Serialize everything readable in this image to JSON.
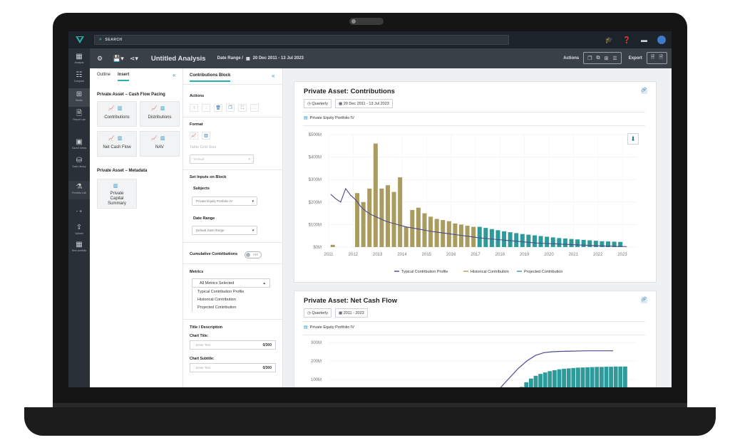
{
  "topbar": {
    "search_label": "SEARCH",
    "icons": [
      "graduation-cap-icon",
      "help-notification-icon",
      "window-icon",
      "user-avatar-icon"
    ]
  },
  "toolbar": {
    "title": "Untitled Analysis",
    "date_range_label": "Date Range /",
    "date_range_value": "20 Dec 2011 - 13 Jul 2023",
    "actions_label": "Actions",
    "export_label": "Export"
  },
  "rail": {
    "items": [
      {
        "label": "Analysis",
        "icon": "calculator-icon"
      },
      {
        "label": "Compare",
        "icon": "compare-icon"
      },
      {
        "label": "Studio",
        "icon": "studio-icon",
        "active": true
      },
      {
        "label": "Report Lab",
        "icon": "report-icon"
      },
      {
        "label": "Saved Views",
        "icon": "saved-views-icon"
      },
      {
        "label": "Data Library",
        "icon": "database-icon"
      },
      {
        "label": "Portfolio Lab",
        "icon": "flask-icon"
      },
      {
        "label": "Upload",
        "icon": "upload-icon"
      },
      {
        "label": "New portfolio",
        "icon": "grid-icon"
      }
    ]
  },
  "insert_panel": {
    "tabs": [
      "Outline",
      "Insert"
    ],
    "section1_title": "Private Asset – Cash Flow Pacing",
    "cards1": [
      "Contributions",
      "Distributions",
      "Net Cash Flow",
      "NAV"
    ],
    "section2_title": "Private Asset – Metadata",
    "cards2": [
      "Private Capital Summary"
    ]
  },
  "block_panel": {
    "title": "Contributions Block",
    "actions_label": "Actions",
    "format_label": "Format",
    "table_grid_size_label": "Table Grid Size",
    "table_grid_size_value": "Default",
    "set_inputs_label": "Set Inputs on Block",
    "subjects_label": "Subjects",
    "subjects_value": "Private Equity Portfolio IV",
    "date_range_label": "Date Range",
    "date_range_value": "Default Date Range",
    "cumulative_label": "Cumulative Contributions",
    "toggle_text": "OFF",
    "metrics_label": "Metrics",
    "metrics_selected": "All Metrics Selected",
    "metrics_list": [
      "Typical Contribution Profile",
      "Historical Contribution",
      "Projected Contribution"
    ],
    "title_desc_label": "Title / Description",
    "chart_title_label": "Chart Title:",
    "chart_title_placeholder": "Enter Text",
    "chart_title_count": "0/300",
    "chart_subtitle_label": "Chart Subtitle:",
    "chart_subtitle_placeholder": "Enter Text",
    "chart_subtitle_count": "0/300"
  },
  "card1": {
    "title": "Private Asset: Contributions",
    "frequency": "Quarterly",
    "date_range": "20 Dec 2011 - 13 Jul 2023",
    "portfolio": "Private Equity Portfolio IV"
  },
  "card2": {
    "title": "Private Asset: Net Cash Flow",
    "frequency": "Quarterly",
    "date_range": "2011 - 2023",
    "portfolio": "Private Equity Portfolio IV"
  },
  "chart_data": [
    {
      "type": "bar",
      "title": "Private Asset: Contributions",
      "x_ticks": [
        "2011",
        "2012",
        "2013",
        "2014",
        "2015",
        "2016",
        "2017",
        "2018",
        "2019",
        "2020",
        "2021",
        "2022",
        "2023"
      ],
      "y_ticks": [
        "$0M",
        "$100M",
        "$200M",
        "$300M",
        "$400M",
        "$500M"
      ],
      "ylim": [
        0,
        500
      ],
      "legend": [
        "Typical Contribution Profile",
        "Historical Contribution",
        "Projected Contribution"
      ],
      "legend_position": "bottom",
      "colors": {
        "historical": "#a99c5e",
        "projected": "#2e9a9a",
        "typical": "#4b4a8a"
      },
      "series": [
        {
          "name": "Historical Contribution",
          "values": [
            10,
            0,
            0,
            0,
            240,
            200,
            260,
            460,
            260,
            275,
            245,
            310,
            90,
            165,
            175,
            150,
            135,
            125,
            120,
            115,
            105,
            100,
            95,
            90
          ]
        },
        {
          "name": "Projected Contribution",
          "values": [
            90,
            85,
            80,
            75,
            70,
            66,
            62,
            58,
            55,
            52,
            49,
            46,
            43,
            40,
            38,
            36,
            34,
            32,
            30,
            28,
            26,
            25,
            24,
            23,
            22,
            21,
            20,
            19,
            18,
            17,
            16,
            15,
            14,
            13,
            12,
            11,
            10,
            9,
            8,
            8,
            7,
            7,
            6,
            6,
            5,
            5,
            4,
            4
          ]
        },
        {
          "name": "Typical Contribution Profile",
          "values": [
            235,
            215,
            200,
            260,
            230,
            210,
            180,
            160,
            145,
            135,
            125,
            115,
            108,
            102,
            96,
            90,
            86,
            82,
            78,
            74,
            70,
            67,
            64,
            61,
            58,
            55,
            52,
            49,
            46,
            43,
            40,
            38,
            36,
            34,
            32,
            30,
            28,
            26,
            24,
            22,
            20,
            18,
            17,
            16,
            15,
            14,
            13,
            12,
            11,
            10,
            9,
            8,
            7,
            6,
            5,
            4,
            4,
            3,
            3,
            2,
            2,
            2,
            1,
            1,
            1,
            1,
            0,
            0,
            0,
            0,
            0,
            0
          ]
        }
      ]
    },
    {
      "type": "bar",
      "title": "Private Asset: Net Cash Flow",
      "y_ticks": [
        "300M",
        "200M",
        "100M"
      ],
      "ylim": [
        0,
        300
      ],
      "series": [
        {
          "name": "Projected Contribution",
          "values": [
            5,
            15,
            35,
            60,
            85,
            105,
            120,
            130,
            138,
            145,
            150,
            155,
            158,
            160,
            162,
            164,
            165,
            166,
            167,
            168,
            168,
            169,
            169,
            170,
            170,
            170,
            170,
            170
          ]
        },
        {
          "name": "Typical Contribution Profile",
          "values": [
            10,
            60,
            110,
            160,
            200,
            230,
            245,
            250,
            252,
            253,
            254,
            255,
            255,
            255,
            255
          ]
        }
      ]
    }
  ]
}
